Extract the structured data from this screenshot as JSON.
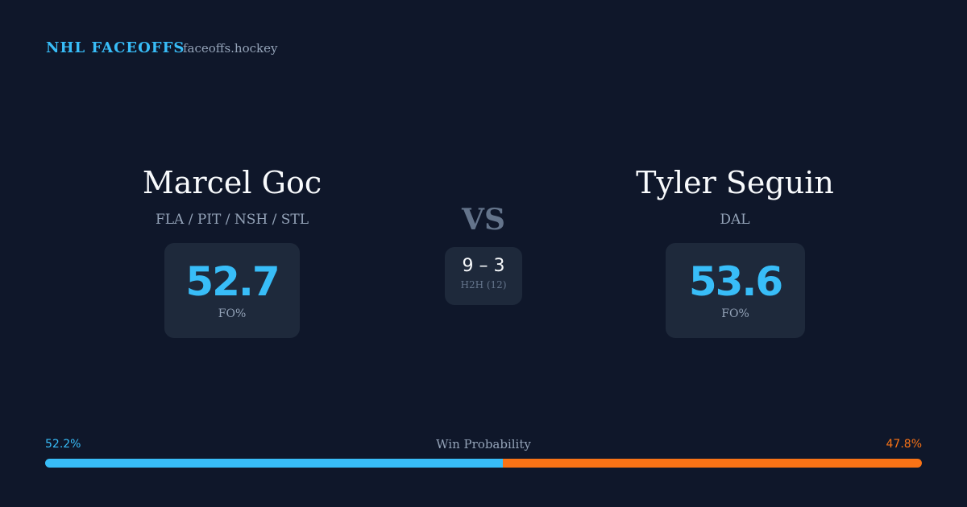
{
  "header": {
    "brand": "NHL FACEOFFS",
    "site": "faceoffs.hockey"
  },
  "players": [
    {
      "name": "Marcel Goc",
      "teams": "FLA / PIT / NSH / STL",
      "fo_pct": 52.7,
      "fo_label": "FO%"
    },
    {
      "name": "Tyler Seguin",
      "teams": "DAL",
      "fo_pct": 53.6,
      "fo_label": "FO%"
    }
  ],
  "versus": {
    "label": "VS",
    "record": "9 – 3",
    "h2h": "H2H (12)"
  },
  "win_probability": {
    "label": "Win Probability",
    "left": {
      "value": 52.2,
      "label": "52.2%",
      "color": "#38bdf8"
    },
    "right": {
      "value": 47.8,
      "label": "47.8%",
      "color": "#f97316"
    }
  }
}
